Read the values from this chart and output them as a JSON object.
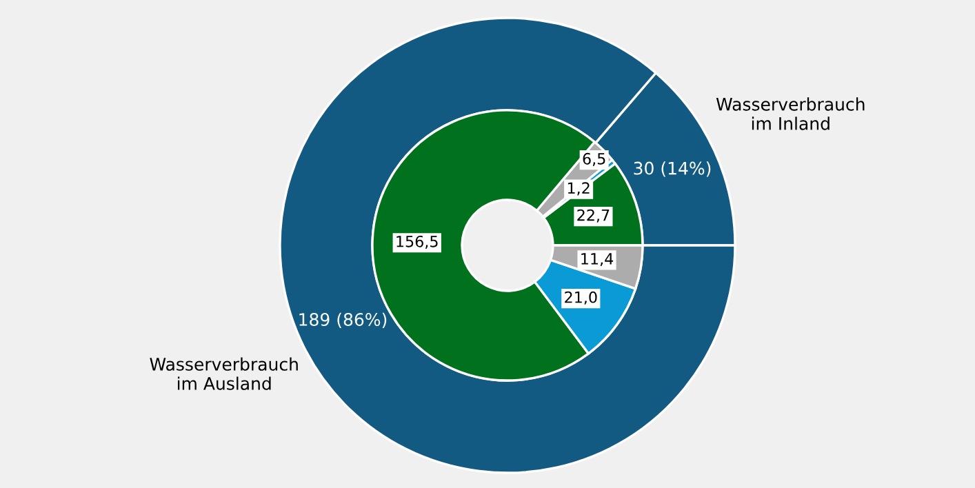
{
  "chart_data": {
    "type": "donut",
    "annotations": [
      "Wasserverbrauch\nim Inland",
      "Wasserverbrauch\nim Ausland"
    ],
    "series": [
      {
        "values": [
          30,
          189
        ],
        "colors": [
          "#135a82",
          "#135a82"
        ],
        "value_labels": [
          "30 (14%)",
          "189 (86%)"
        ]
      },
      {
        "values": [
          22.7,
          1.2,
          6.5,
          156.5,
          21.0,
          11.4
        ],
        "colors": [
          "#00721e",
          "#0a9bd6",
          "#acacac",
          "#00721e",
          "#0a9bd6",
          "#acacac"
        ],
        "value_labels": [
          "22,7",
          "1,2",
          "6,5",
          "156,5",
          "21,0",
          "11,4"
        ]
      }
    ]
  }
}
